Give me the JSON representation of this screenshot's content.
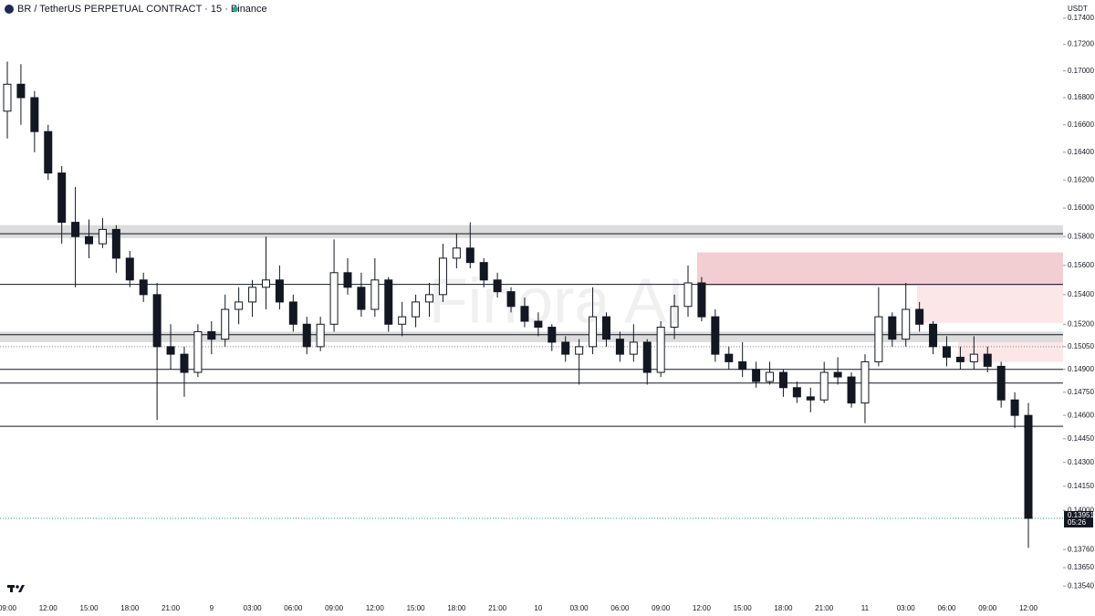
{
  "chart_data": {
    "type": "candlestick",
    "title": "BR / TetherUS PERPETUAL CONTRACT · 15 · Binance",
    "currency": "USDT",
    "watermark": "Finora AI",
    "countdown": "05:26",
    "last_price": 0.13951,
    "log_scale": true,
    "ylim": [
      0.1347,
      0.1747
    ],
    "yticks": [
      {
        "value": 0.174,
        "label": "0.17400"
      },
      {
        "value": 0.172,
        "label": "0.17200"
      },
      {
        "value": 0.17,
        "label": "0.17000"
      },
      {
        "value": 0.168,
        "label": "0.16800"
      },
      {
        "value": 0.166,
        "label": "0.16600"
      },
      {
        "value": 0.164,
        "label": "0.16400"
      },
      {
        "value": 0.162,
        "label": "0.16200"
      },
      {
        "value": 0.16,
        "label": "0.16000"
      },
      {
        "value": 0.158,
        "label": "0.15800"
      },
      {
        "value": 0.156,
        "label": "0.15600"
      },
      {
        "value": 0.154,
        "label": "0.15400"
      },
      {
        "value": 0.152,
        "label": "0.15200"
      },
      {
        "value": 0.1505,
        "label": "0.15050"
      },
      {
        "value": 0.149,
        "label": "0.14900"
      },
      {
        "value": 0.1475,
        "label": "0.14750"
      },
      {
        "value": 0.146,
        "label": "0.14600"
      },
      {
        "value": 0.1445,
        "label": "0.14450"
      },
      {
        "value": 0.143,
        "label": "0.14300"
      },
      {
        "value": 0.1415,
        "label": "0.14150"
      },
      {
        "value": 0.14,
        "label": "0.14000"
      },
      {
        "value": 0.1376,
        "label": "0.13760"
      },
      {
        "value": 0.1365,
        "label": "0.13650"
      },
      {
        "value": 0.1354,
        "label": "0.13540"
      }
    ],
    "categories": [
      "09:00",
      null,
      null,
      "12:00",
      null,
      null,
      "15:00",
      null,
      null,
      "18:00",
      null,
      null,
      "21:00",
      null,
      null,
      "9",
      null,
      null,
      "03:00",
      null,
      null,
      "06:00",
      null,
      null,
      "09:00",
      null,
      null,
      "12:00",
      null,
      null,
      "15:00",
      null,
      null,
      "18:00",
      null,
      null,
      "21:00",
      null,
      null,
      "10",
      null,
      null,
      "03:00",
      null,
      null,
      "06:00",
      null,
      null,
      "09:00",
      null,
      null,
      "12:00",
      null,
      null,
      "15:00",
      null,
      null,
      "18:00",
      null,
      null,
      "21:00",
      null,
      null,
      "11",
      null,
      null,
      "03:00",
      null,
      null,
      "06:00",
      null,
      null,
      "09:00",
      null,
      null,
      "12:00"
    ],
    "open": [
      0.167,
      0.169,
      0.168,
      0.1655,
      0.1625,
      0.159,
      0.158,
      0.1575,
      0.1585,
      0.1565,
      0.155,
      0.154,
      0.1505,
      0.15,
      0.1488,
      0.1515,
      0.151,
      0.153,
      0.1535,
      0.1545,
      0.155,
      0.1535,
      0.152,
      0.1505,
      0.152,
      0.1555,
      0.1545,
      0.153,
      0.155,
      0.152,
      0.1525,
      0.1535,
      0.154,
      0.1565,
      0.1572,
      0.1562,
      0.155,
      0.1542,
      0.1532,
      0.1522,
      0.1518,
      0.1508,
      0.15,
      0.1505,
      0.1525,
      0.151,
      0.15,
      0.1508,
      0.1488,
      0.1518,
      0.1532,
      0.1548,
      0.1525,
      0.15,
      0.1495,
      0.149,
      0.1482,
      0.1488,
      0.1478,
      0.1472,
      0.147,
      0.1488,
      0.1485,
      0.1468,
      0.1495,
      0.1525,
      0.151,
      0.153,
      0.152,
      0.1505,
      0.1498,
      0.1495,
      0.15,
      0.1492,
      0.147,
      0.146
    ],
    "high": [
      0.1707,
      0.1705,
      0.1685,
      0.166,
      0.163,
      0.1615,
      0.1592,
      0.1593,
      0.1588,
      0.157,
      0.1555,
      0.1548,
      0.152,
      0.1505,
      0.152,
      0.1522,
      0.154,
      0.1545,
      0.155,
      0.158,
      0.156,
      0.154,
      0.1525,
      0.1525,
      0.1578,
      0.1565,
      0.1555,
      0.1565,
      0.1552,
      0.1535,
      0.154,
      0.1548,
      0.1575,
      0.1582,
      0.159,
      0.1565,
      0.1555,
      0.1545,
      0.1538,
      0.1528,
      0.152,
      0.1512,
      0.151,
      0.1545,
      0.1528,
      0.1515,
      0.152,
      0.151,
      0.1522,
      0.154,
      0.156,
      0.1552,
      0.153,
      0.1505,
      0.1508,
      0.1495,
      0.1495,
      0.149,
      0.1482,
      0.1478,
      0.1495,
      0.1498,
      0.1488,
      0.15,
      0.1545,
      0.1528,
      0.1548,
      0.1535,
      0.1522,
      0.1512,
      0.1505,
      0.1512,
      0.1505,
      0.1495,
      0.1475,
      0.1468
    ],
    "low": [
      0.165,
      0.166,
      0.164,
      0.162,
      0.1575,
      0.1545,
      0.1565,
      0.1572,
      0.1555,
      0.1545,
      0.1535,
      0.1457,
      0.149,
      0.1472,
      0.1485,
      0.15,
      0.1505,
      0.152,
      0.1525,
      0.153,
      0.153,
      0.1515,
      0.15,
      0.1502,
      0.1515,
      0.154,
      0.1525,
      0.1525,
      0.1515,
      0.1512,
      0.1518,
      0.1525,
      0.1535,
      0.1558,
      0.1558,
      0.1545,
      0.1538,
      0.1528,
      0.1518,
      0.1512,
      0.1502,
      0.1495,
      0.148,
      0.15,
      0.1505,
      0.1495,
      0.1495,
      0.148,
      0.1485,
      0.151,
      0.1525,
      0.1522,
      0.1495,
      0.149,
      0.1485,
      0.1478,
      0.148,
      0.1472,
      0.1468,
      0.1462,
      0.1468,
      0.148,
      0.1465,
      0.1455,
      0.1492,
      0.1505,
      0.1505,
      0.1515,
      0.15,
      0.1492,
      0.149,
      0.149,
      0.1488,
      0.1465,
      0.1452,
      0.1377
    ],
    "close": [
      0.169,
      0.168,
      0.1655,
      0.1625,
      0.159,
      0.158,
      0.1575,
      0.1585,
      0.1565,
      0.155,
      0.154,
      0.1505,
      0.15,
      0.1488,
      0.1515,
      0.151,
      0.153,
      0.1535,
      0.1545,
      0.155,
      0.1535,
      0.152,
      0.1505,
      0.152,
      0.1555,
      0.1545,
      0.153,
      0.155,
      0.152,
      0.1525,
      0.1535,
      0.154,
      0.1565,
      0.1572,
      0.1562,
      0.155,
      0.1542,
      0.1532,
      0.1522,
      0.1518,
      0.1508,
      0.15,
      0.1505,
      0.1525,
      0.151,
      0.15,
      0.1508,
      0.1488,
      0.1518,
      0.1532,
      0.1548,
      0.1525,
      0.15,
      0.1495,
      0.149,
      0.1482,
      0.1488,
      0.1478,
      0.1472,
      0.147,
      0.1488,
      0.1485,
      0.1468,
      0.1495,
      0.1525,
      0.151,
      0.153,
      0.152,
      0.1505,
      0.1498,
      0.1495,
      0.15,
      0.1492,
      0.147,
      0.146,
      0.13951
    ],
    "levels": [
      0.1582,
      0.1547,
      0.1513,
      0.149,
      0.1481,
      0.1453
    ],
    "gray_bands": [
      [
        0.1579,
        0.1588
      ],
      [
        0.1508,
        0.1515
      ]
    ],
    "zones": [
      {
        "low": 0.1546,
        "high": 0.1569,
        "color": "#f2cdd1"
      },
      {
        "low": 0.1521,
        "high": 0.1546,
        "color": "#fbe6e8"
      },
      {
        "low": 0.1495,
        "high": 0.1513,
        "color": "#fbe6e8"
      }
    ],
    "dotted_level": 0.1505
  }
}
